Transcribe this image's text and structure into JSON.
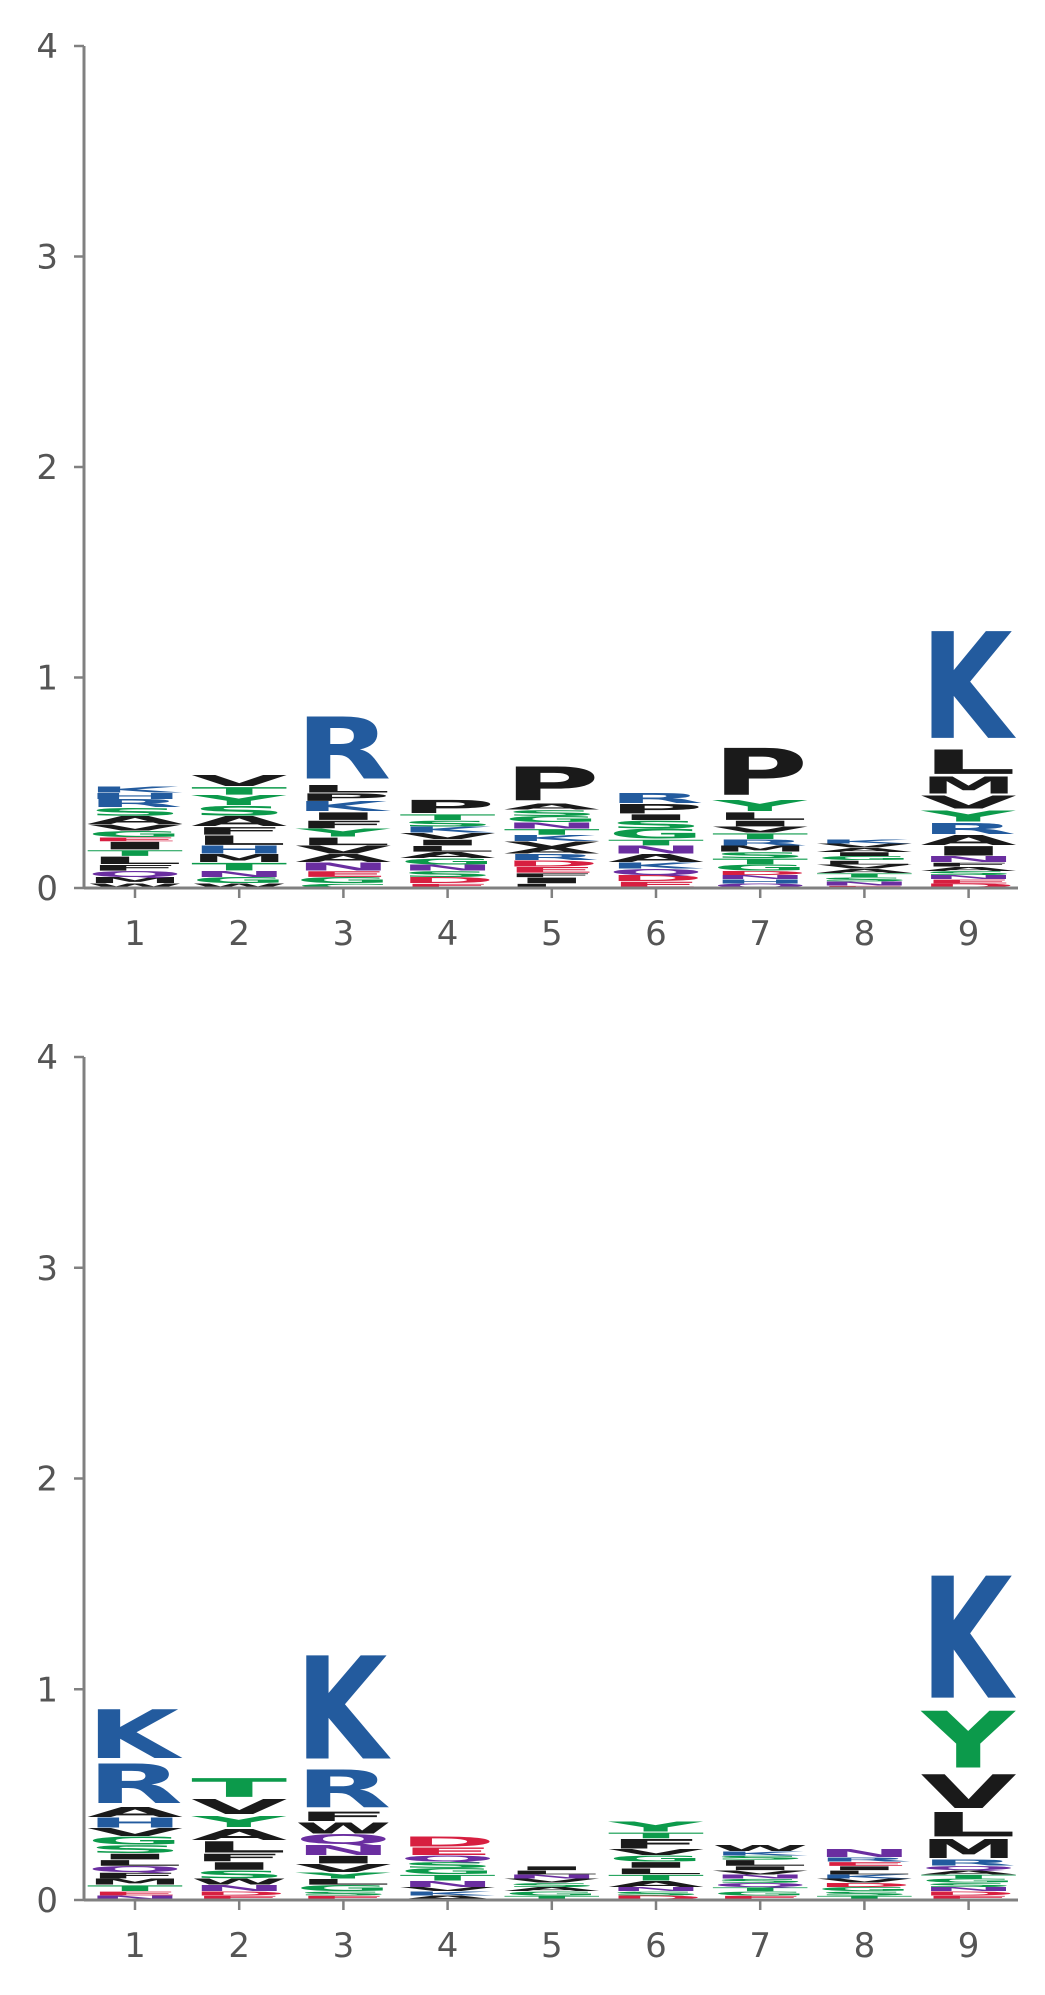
{
  "colors": {
    "K": "#235b9e",
    "R": "#235b9e",
    "H": "#235b9e",
    "D": "#d71f40",
    "E": "#d71f40",
    "S": "#0c9a4b",
    "T": "#0c9a4b",
    "G": "#0c9a4b",
    "Y": "#0c9a4b",
    "C": "#0c9a4b",
    "N": "#6a2ea0",
    "Q": "#6a2ea0",
    "A": "#1a1a1a",
    "V": "#1a1a1a",
    "L": "#1a1a1a",
    "I": "#1a1a1a",
    "P": "#1a1a1a",
    "F": "#1a1a1a",
    "M": "#1a1a1a",
    "W": "#1a1a1a",
    "axis": "#808080",
    "tick_text": "#555555"
  },
  "chart_data": [
    {
      "type": "sequence-logo",
      "ylim": [
        0,
        4
      ],
      "yticks": [
        "0",
        "1",
        "2",
        "3",
        "4"
      ],
      "xticks": [
        "1",
        "2",
        "3",
        "4",
        "5",
        "6",
        "7",
        "8",
        "9"
      ],
      "positions": [
        [
          [
            "W",
            0.02
          ],
          [
            "M",
            0.03
          ],
          [
            "Q",
            0.03
          ],
          [
            "F",
            0.03
          ],
          [
            "L",
            0.04
          ],
          [
            "T",
            0.03
          ],
          [
            "I",
            0.04
          ],
          [
            "E",
            0.02
          ],
          [
            "G",
            0.03
          ],
          [
            "V",
            0.03
          ],
          [
            "A",
            0.04
          ],
          [
            "S",
            0.04
          ],
          [
            "R",
            0.04
          ],
          [
            "H",
            0.03
          ],
          [
            "K",
            0.03
          ]
        ],
        [
          [
            "W",
            0.02
          ],
          [
            "G",
            0.03
          ],
          [
            "N",
            0.03
          ],
          [
            "T",
            0.04
          ],
          [
            "M",
            0.04
          ],
          [
            "H",
            0.04
          ],
          [
            "L",
            0.05
          ],
          [
            "F",
            0.04
          ],
          [
            "A",
            0.05
          ],
          [
            "S",
            0.05
          ],
          [
            "Y",
            0.05
          ],
          [
            "T",
            0.04
          ],
          [
            "V",
            0.06
          ]
        ],
        [
          [
            "C",
            0.02
          ],
          [
            "G",
            0.03
          ],
          [
            "E",
            0.03
          ],
          [
            "N",
            0.04
          ],
          [
            "A",
            0.04
          ],
          [
            "V",
            0.04
          ],
          [
            "L",
            0.04
          ],
          [
            "Y",
            0.04
          ],
          [
            "F",
            0.04
          ],
          [
            "I",
            0.04
          ],
          [
            "K",
            0.05
          ],
          [
            "P",
            0.04
          ],
          [
            "L",
            0.04
          ],
          [
            "R",
            0.33
          ]
        ],
        [
          [
            "E",
            0.02
          ],
          [
            "D",
            0.03
          ],
          [
            "S",
            0.03
          ],
          [
            "N",
            0.03
          ],
          [
            "G",
            0.03
          ],
          [
            "A",
            0.03
          ],
          [
            "L",
            0.03
          ],
          [
            "I",
            0.03
          ],
          [
            "V",
            0.03
          ],
          [
            "K",
            0.03
          ],
          [
            "S",
            0.03
          ],
          [
            "T",
            0.03
          ],
          [
            "P",
            0.07
          ]
        ],
        [
          [
            "L",
            0.02
          ],
          [
            "I",
            0.03
          ],
          [
            "F",
            0.02
          ],
          [
            "E",
            0.03
          ],
          [
            "D",
            0.03
          ],
          [
            "R",
            0.03
          ],
          [
            "A",
            0.03
          ],
          [
            "V",
            0.03
          ],
          [
            "K",
            0.03
          ],
          [
            "T",
            0.03
          ],
          [
            "N",
            0.03
          ],
          [
            "G",
            0.03
          ],
          [
            "S",
            0.03
          ],
          [
            "A",
            0.03
          ],
          [
            "P",
            0.18
          ]
        ],
        [
          [
            "E",
            0.03
          ],
          [
            "D",
            0.03
          ],
          [
            "Q",
            0.03
          ],
          [
            "K",
            0.03
          ],
          [
            "A",
            0.04
          ],
          [
            "N",
            0.04
          ],
          [
            "T",
            0.03
          ],
          [
            "G",
            0.05
          ],
          [
            "S",
            0.04
          ],
          [
            "I",
            0.03
          ],
          [
            "P",
            0.05
          ],
          [
            "R",
            0.05
          ]
        ],
        [
          [
            "Q",
            0.02
          ],
          [
            "H",
            0.02
          ],
          [
            "N",
            0.02
          ],
          [
            "D",
            0.02
          ],
          [
            "G",
            0.03
          ],
          [
            "T",
            0.03
          ],
          [
            "S",
            0.03
          ],
          [
            "M",
            0.03
          ],
          [
            "R",
            0.03
          ],
          [
            "T",
            0.03
          ],
          [
            "V",
            0.03
          ],
          [
            "I",
            0.03
          ],
          [
            "L",
            0.04
          ],
          [
            "Y",
            0.06
          ],
          [
            "P",
            0.25
          ]
        ],
        [
          [
            "E",
            0.01
          ],
          [
            "N",
            0.02
          ],
          [
            "S",
            0.02
          ],
          [
            "T",
            0.02
          ],
          [
            "A",
            0.02
          ],
          [
            "V",
            0.02
          ],
          [
            "L",
            0.02
          ],
          [
            "G",
            0.02
          ],
          [
            "I",
            0.02
          ],
          [
            "A",
            0.02
          ],
          [
            "V",
            0.02
          ],
          [
            "K",
            0.02
          ]
        ],
        [
          [
            "D",
            0.02
          ],
          [
            "E",
            0.02
          ],
          [
            "N",
            0.02
          ],
          [
            "S",
            0.02
          ],
          [
            "A",
            0.02
          ],
          [
            "F",
            0.02
          ],
          [
            "N",
            0.03
          ],
          [
            "I",
            0.05
          ],
          [
            "A",
            0.05
          ],
          [
            "R",
            0.06
          ],
          [
            "Y",
            0.06
          ],
          [
            "V",
            0.07
          ],
          [
            "M",
            0.09
          ],
          [
            "L",
            0.13
          ],
          [
            "K",
            0.57
          ]
        ]
      ]
    },
    {
      "type": "sequence-logo",
      "ylim": [
        0,
        4
      ],
      "yticks": [
        "0",
        "1",
        "2",
        "3",
        "4"
      ],
      "xticks": [
        "1",
        "2",
        "3",
        "4",
        "5",
        "6",
        "7",
        "8",
        "9"
      ],
      "positions": [
        [
          [
            "N",
            0.02
          ],
          [
            "E",
            0.02
          ],
          [
            "T",
            0.03
          ],
          [
            "M",
            0.03
          ],
          [
            "F",
            0.03
          ],
          [
            "Q",
            0.03
          ],
          [
            "L",
            0.03
          ],
          [
            "I",
            0.03
          ],
          [
            "S",
            0.04
          ],
          [
            "G",
            0.04
          ],
          [
            "V",
            0.04
          ],
          [
            "H",
            0.05
          ],
          [
            "A",
            0.05
          ],
          [
            "R",
            0.21
          ],
          [
            "K",
            0.26
          ]
        ],
        [
          [
            "E",
            0.02
          ],
          [
            "D",
            0.02
          ],
          [
            "N",
            0.03
          ],
          [
            "W",
            0.03
          ],
          [
            "S",
            0.04
          ],
          [
            "I",
            0.04
          ],
          [
            "F",
            0.04
          ],
          [
            "L",
            0.06
          ],
          [
            "A",
            0.06
          ],
          [
            "Y",
            0.06
          ],
          [
            "V",
            0.08
          ],
          [
            "T",
            0.1
          ]
        ],
        [
          [
            "E",
            0.02
          ],
          [
            "S",
            0.02
          ],
          [
            "G",
            0.03
          ],
          [
            "L",
            0.03
          ],
          [
            "Y",
            0.03
          ],
          [
            "V",
            0.04
          ],
          [
            "I",
            0.04
          ],
          [
            "N",
            0.05
          ],
          [
            "Q",
            0.05
          ],
          [
            "W",
            0.06
          ],
          [
            "F",
            0.05
          ],
          [
            "R",
            0.2
          ],
          [
            "K",
            0.55
          ]
        ],
        [
          [
            "A",
            0.02
          ],
          [
            "K",
            0.02
          ],
          [
            "V",
            0.02
          ],
          [
            "N",
            0.03
          ],
          [
            "T",
            0.03
          ],
          [
            "G",
            0.03
          ],
          [
            "S",
            0.03
          ],
          [
            "Q",
            0.03
          ],
          [
            "E",
            0.04
          ],
          [
            "D",
            0.05
          ]
        ],
        [
          [
            "T",
            0.02
          ],
          [
            "G",
            0.02
          ],
          [
            "A",
            0.02
          ],
          [
            "S",
            0.02
          ],
          [
            "V",
            0.02
          ],
          [
            "N",
            0.02
          ],
          [
            "L",
            0.02
          ],
          [
            "I",
            0.02
          ]
        ],
        [
          [
            "D",
            0.02
          ],
          [
            "S",
            0.02
          ],
          [
            "N",
            0.02
          ],
          [
            "A",
            0.03
          ],
          [
            "T",
            0.03
          ],
          [
            "L",
            0.03
          ],
          [
            "I",
            0.03
          ],
          [
            "G",
            0.03
          ],
          [
            "V",
            0.03
          ],
          [
            "F",
            0.05
          ],
          [
            "T",
            0.03
          ],
          [
            "Y",
            0.05
          ]
        ],
        [
          [
            "E",
            0.02
          ],
          [
            "G",
            0.02
          ],
          [
            "T",
            0.02
          ],
          [
            "Q",
            0.02
          ],
          [
            "S",
            0.02
          ],
          [
            "N",
            0.02
          ],
          [
            "V",
            0.02
          ],
          [
            "I",
            0.02
          ],
          [
            "L",
            0.03
          ],
          [
            "S",
            0.02
          ],
          [
            "K",
            0.02
          ],
          [
            "W",
            0.03
          ]
        ],
        [
          [
            "T",
            0.02
          ],
          [
            "S",
            0.02
          ],
          [
            "G",
            0.02
          ],
          [
            "D",
            0.02
          ],
          [
            "V",
            0.02
          ],
          [
            "K",
            0.02
          ],
          [
            "L",
            0.02
          ],
          [
            "I",
            0.02
          ],
          [
            "E",
            0.02
          ],
          [
            "R",
            0.02
          ],
          [
            "N",
            0.04
          ]
        ],
        [
          [
            "E",
            0.02
          ],
          [
            "D",
            0.02
          ],
          [
            "N",
            0.02
          ],
          [
            "S",
            0.02
          ],
          [
            "G",
            0.02
          ],
          [
            "T",
            0.02
          ],
          [
            "A",
            0.02
          ],
          [
            "Q",
            0.02
          ],
          [
            "R",
            0.03
          ],
          [
            "M",
            0.1
          ],
          [
            "L",
            0.13
          ],
          [
            "V",
            0.18
          ],
          [
            "Y",
            0.3
          ],
          [
            "K",
            0.65
          ]
        ]
      ]
    }
  ]
}
